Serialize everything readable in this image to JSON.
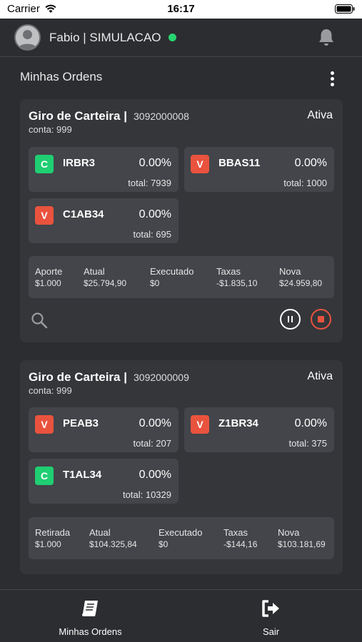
{
  "status_bar": {
    "carrier": "Carrier",
    "time": "16:17"
  },
  "header": {
    "user_name": "Fabio | SIMULACAO",
    "online_color": "#27d470"
  },
  "page": {
    "title": "Minhas Ordens"
  },
  "orders": [
    {
      "title": "Giro de Carteira |",
      "id": "3092000008",
      "account": "conta: 999",
      "status": "Ativa",
      "assets": [
        {
          "side": "C",
          "ticker": "IRBR3",
          "pct": "0.00%",
          "total": "total: 7939"
        },
        {
          "side": "V",
          "ticker": "BBAS11",
          "pct": "0.00%",
          "total": "total: 1000"
        },
        {
          "side": "V",
          "ticker": "C1AB34",
          "pct": "0.00%",
          "total": "total: 695"
        }
      ],
      "summary": [
        {
          "label": "Aporte",
          "value": "$1.000"
        },
        {
          "label": "Atual",
          "value": "$25.794,90"
        },
        {
          "label": "Executado",
          "value": "$0"
        },
        {
          "label": "Taxas",
          "value": "-$1.835,10"
        },
        {
          "label": "Nova",
          "value": "$24.959,80"
        }
      ]
    },
    {
      "title": "Giro de Carteira |",
      "id": "3092000009",
      "account": "conta: 999",
      "status": "Ativa",
      "assets": [
        {
          "side": "V",
          "ticker": "PEAB3",
          "pct": "0.00%",
          "total": "total: 207"
        },
        {
          "side": "V",
          "ticker": "Z1BR34",
          "pct": "0.00%",
          "total": "total: 375"
        },
        {
          "side": "C",
          "ticker": "T1AL34",
          "pct": "0.00%",
          "total": "total: 10329"
        }
      ],
      "summary": [
        {
          "label": "Retirada",
          "value": "$1.000"
        },
        {
          "label": "Atual",
          "value": "$104.325,84"
        },
        {
          "label": "Executado",
          "value": "$0"
        },
        {
          "label": "Taxas",
          "value": "-$144,16"
        },
        {
          "label": "Nova",
          "value": "$103.181,69"
        }
      ]
    }
  ],
  "tabbar": {
    "orders_label": "Minhas Ordens",
    "exit_label": "Sair"
  },
  "colors": {
    "buy": "#1fcf72",
    "sell": "#e9533e",
    "background": "#2c2d30",
    "card": "#35363a"
  }
}
